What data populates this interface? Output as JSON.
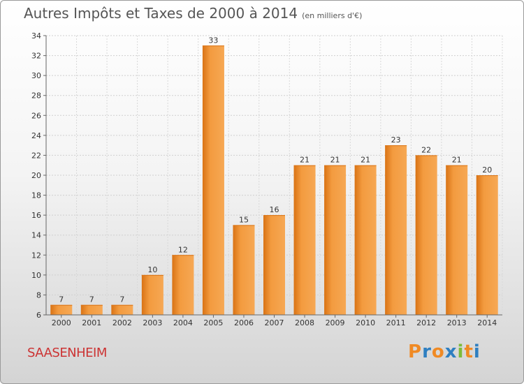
{
  "chart_data": {
    "type": "bar",
    "title": "Autres Impôts et Taxes de 2000 à 2014",
    "subtitle": "(en milliers d'€)",
    "categories": [
      "2000",
      "2001",
      "2002",
      "2003",
      "2004",
      "2005",
      "2006",
      "2007",
      "2008",
      "2009",
      "2010",
      "2011",
      "2012",
      "2013",
      "2014"
    ],
    "values": [
      7,
      7,
      7,
      10,
      12,
      33,
      15,
      16,
      21,
      21,
      21,
      23,
      22,
      21,
      20
    ],
    "ylim": [
      6,
      34
    ],
    "yticks": [
      "6",
      "8",
      "10",
      "12",
      "14",
      "16",
      "18",
      "20",
      "22",
      "24",
      "26",
      "28",
      "30",
      "32",
      "34"
    ],
    "grid": true,
    "bar_color": "#f39b3f",
    "bar_color_dark": "#d97315"
  },
  "footer": {
    "commune": "SAASENHEIM",
    "logo": {
      "letters": [
        "P",
        "r",
        "o",
        "x",
        "i",
        "t",
        "i"
      ],
      "colors": [
        "#f08a24",
        "#2e7fc1",
        "#f08a24",
        "#2e7fc1",
        "#7dbb3a",
        "#f08a24",
        "#2e7fc1"
      ]
    }
  }
}
